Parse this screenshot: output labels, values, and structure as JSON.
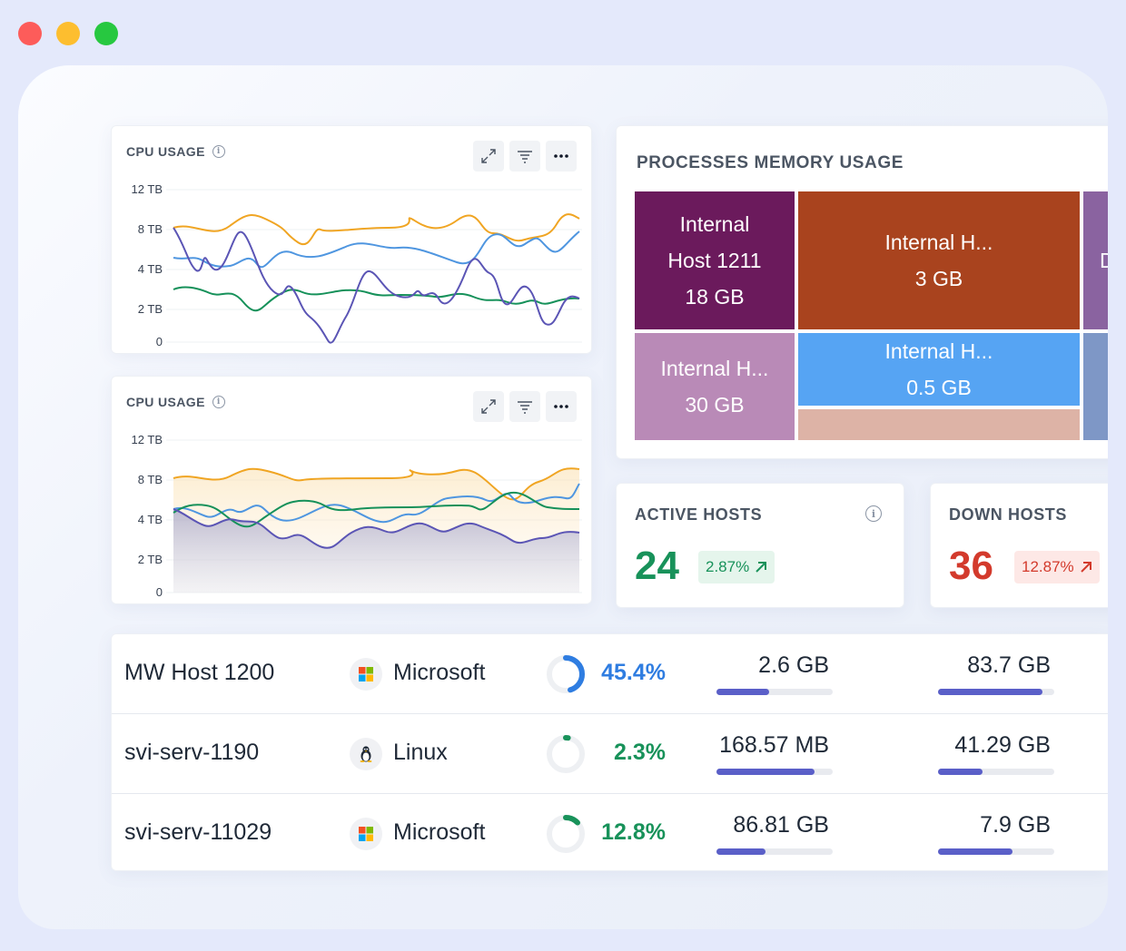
{
  "window": {
    "controls": [
      "close",
      "minimize",
      "maximize"
    ]
  },
  "cpu_cards": [
    {
      "title": "CPU USAGE",
      "y_ticks": [
        "12 TB",
        "8 TB",
        "4 TB",
        "2 TB",
        "0"
      ],
      "style": "line"
    },
    {
      "title": "CPU USAGE",
      "y_ticks": [
        "12 TB",
        "8 TB",
        "4 TB",
        "2 TB",
        "0"
      ],
      "style": "area"
    }
  ],
  "colors": {
    "series_orange": "#f0a523",
    "series_blue": "#4f96e0",
    "series_green": "#16915a",
    "series_purple": "#5b55b5",
    "accent_blue": "#2f7de1",
    "success": "#18925a",
    "danger": "#d33a2c",
    "bar_fill": "#5a5fc8"
  },
  "memory": {
    "title": "PROCESSES MEMORY USAGE",
    "tiles": [
      {
        "lines": [
          "Internal",
          "Host 1211",
          "18 GB"
        ],
        "color": "#6b1a5c"
      },
      {
        "lines": [
          "Internal H...",
          "3 GB"
        ],
        "color": "#a9431e"
      },
      {
        "lines": [
          "D"
        ],
        "color": "#8a63a0"
      },
      {
        "lines": [
          "Internal H...",
          "30 GB"
        ],
        "color": "#b98ab7"
      },
      {
        "lines": [
          "Internal H...",
          "0.5 GB"
        ],
        "color": "#56a4f3"
      },
      {
        "lines": [],
        "color": "#ddb3a6"
      },
      {
        "lines": [],
        "color": "#7e97c6"
      }
    ]
  },
  "hosts": {
    "active": {
      "title": "ACTIVE HOSTS",
      "count": "24",
      "change": "2.87%"
    },
    "down": {
      "title": "DOWN HOSTS",
      "count": "36",
      "change": "12.87%"
    }
  },
  "table": {
    "rows": [
      {
        "host": "MW Host 1200",
        "os": "Microsoft",
        "os_icon": "windows-icon",
        "cpu": "45.4%",
        "cpu_value": 0.454,
        "cpu_color": "#2f7de1",
        "mem": "2.6 GB",
        "mem_level": 0.45,
        "disk": "83.7 GB",
        "disk_level": 0.9
      },
      {
        "host": "svi-serv-1190",
        "os": "Linux",
        "os_icon": "linux-icon",
        "cpu": "2.3%",
        "cpu_value": 0.023,
        "cpu_color": "#18925a",
        "mem": "168.57 MB",
        "mem_level": 0.84,
        "disk": "41.29 GB",
        "disk_level": 0.38
      },
      {
        "host": "svi-serv-11029",
        "os": "Microsoft",
        "os_icon": "windows-icon",
        "cpu": "12.8%",
        "cpu_value": 0.128,
        "cpu_color": "#18925a",
        "mem": "86.81 GB",
        "mem_level": 0.42,
        "disk": "7.9 GB",
        "disk_level": 0.64
      }
    ]
  }
}
